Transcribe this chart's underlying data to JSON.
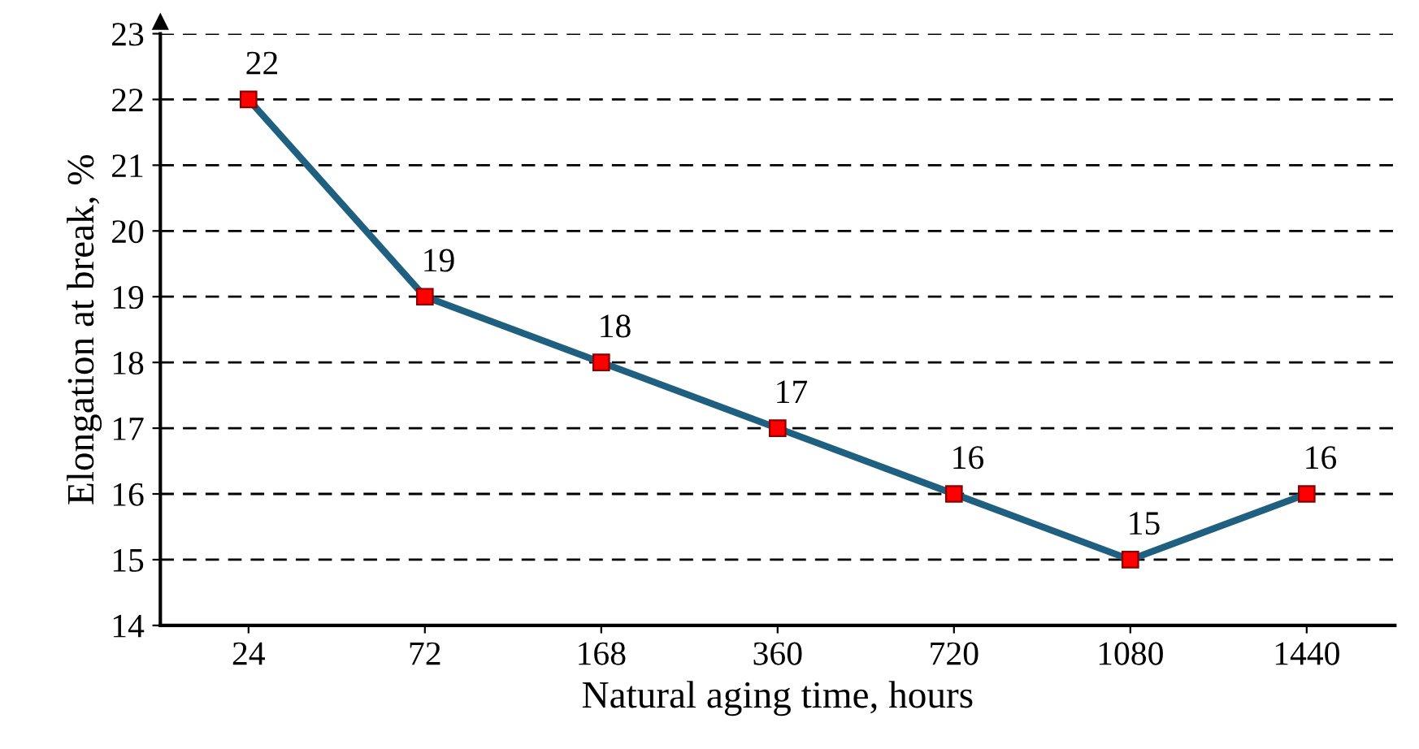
{
  "chart_data": {
    "type": "line",
    "xlabel": "Natural aging time, hours",
    "ylabel": "Elongation at break, %",
    "categories": [
      "24",
      "72",
      "168",
      "360",
      "720",
      "1080",
      "1440"
    ],
    "series": [
      {
        "color": "#1f5f7f",
        "values": [
          22,
          19,
          18,
          17,
          16,
          15,
          16
        ],
        "colors": [
          "#ff0000",
          "#ff0000",
          "#ff0000",
          "#ff0000",
          "#ff0000",
          "#ff0000",
          "#ff0000"
        ]
      }
    ],
    "ylim": [
      14,
      23
    ],
    "yticks": [
      14,
      15,
      16,
      17,
      18,
      19,
      20,
      21,
      22,
      23
    ],
    "grid": "y",
    "marker": "square",
    "line_style": "solid",
    "data_labels": true,
    "legend": false
  }
}
